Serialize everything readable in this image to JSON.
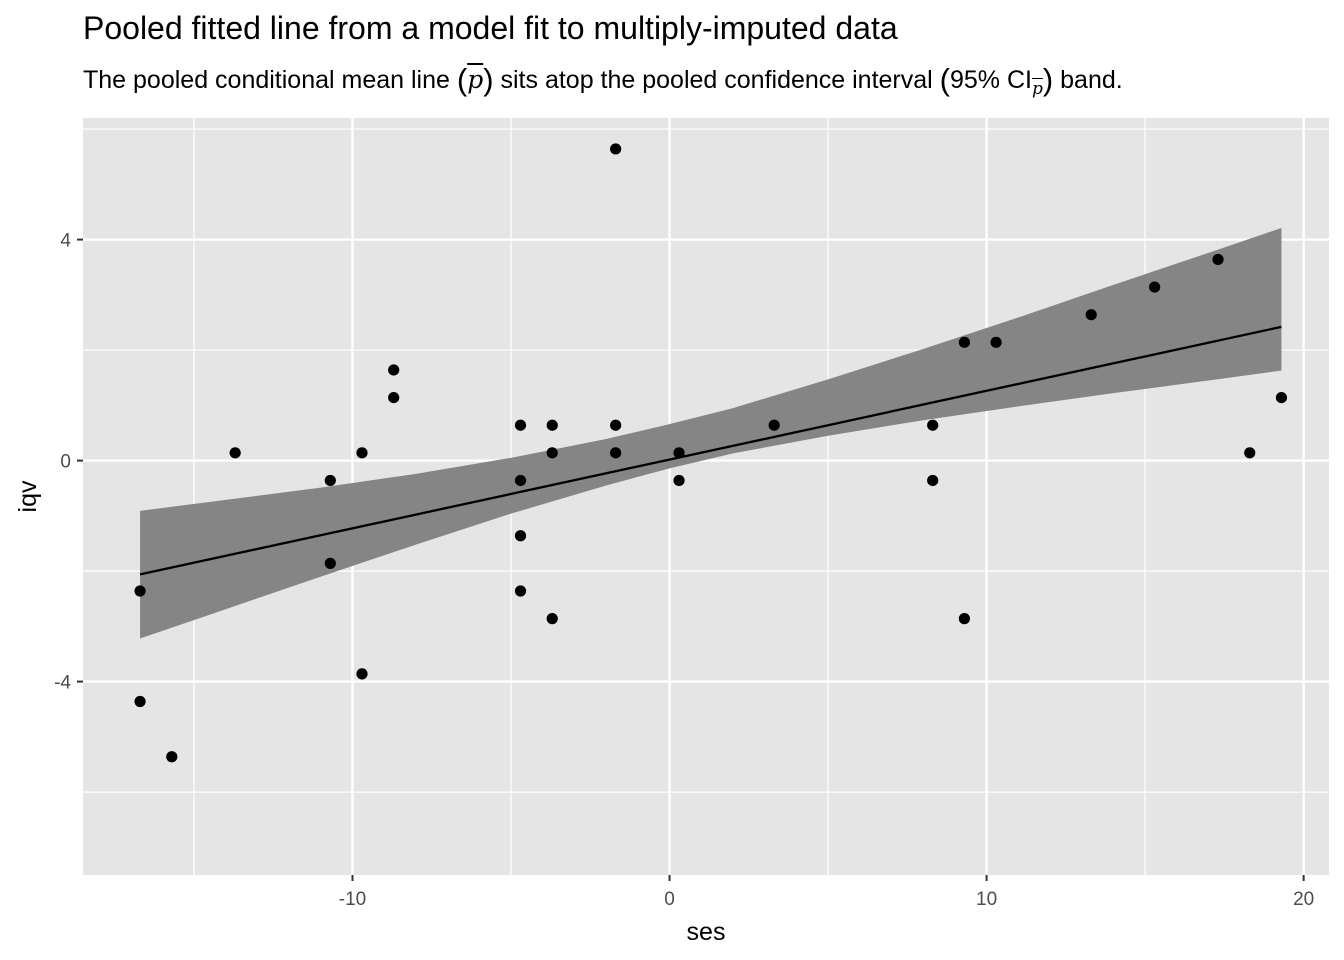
{
  "chart_data": {
    "type": "scatter",
    "title": "Pooled fitted line from a model fit to multiply-imputed data",
    "subtitle": {
      "before": "The pooled conditional mean line ",
      "symbol": "p",
      "middle": " sits atop the pooled confidence interval ",
      "ci_label": "95% CI",
      "after": " band."
    },
    "xlabel": "ses",
    "ylabel": "iqv",
    "xlim": [
      -18.5,
      20.8
    ],
    "ylim": [
      -7.5,
      6.2
    ],
    "x_ticks": [
      -10,
      0,
      10,
      20
    ],
    "x_tick_labels": [
      "-10",
      "0",
      "10",
      "20"
    ],
    "y_ticks": [
      -4,
      0,
      4
    ],
    "y_tick_labels": [
      "-4",
      "0",
      "4"
    ],
    "x_minor": [
      -15,
      -5,
      5,
      15
    ],
    "y_minor": [
      -6,
      -2,
      2,
      6
    ],
    "grid": true,
    "panel_background": "#e5e5e5",
    "points": [
      {
        "x": -16.7,
        "y": -2.36
      },
      {
        "x": -16.7,
        "y": -4.36
      },
      {
        "x": -15.7,
        "y": -5.36
      },
      {
        "x": -13.7,
        "y": 0.14
      },
      {
        "x": -10.7,
        "y": -0.36
      },
      {
        "x": -10.7,
        "y": -1.86
      },
      {
        "x": -9.7,
        "y": 0.14
      },
      {
        "x": -9.7,
        "y": -3.86
      },
      {
        "x": -8.7,
        "y": 1.64
      },
      {
        "x": -8.7,
        "y": 1.14
      },
      {
        "x": -4.7,
        "y": 0.64
      },
      {
        "x": -4.7,
        "y": -0.36
      },
      {
        "x": -4.7,
        "y": -1.36
      },
      {
        "x": -4.7,
        "y": -2.36
      },
      {
        "x": -3.7,
        "y": 0.64
      },
      {
        "x": -3.7,
        "y": 0.14
      },
      {
        "x": -3.7,
        "y": -2.86
      },
      {
        "x": -1.7,
        "y": 5.64
      },
      {
        "x": -1.7,
        "y": 0.64
      },
      {
        "x": -1.7,
        "y": 0.14
      },
      {
        "x": 0.3,
        "y": 0.14
      },
      {
        "x": 0.3,
        "y": -0.36
      },
      {
        "x": 3.3,
        "y": 0.64
      },
      {
        "x": 8.3,
        "y": 0.64
      },
      {
        "x": 8.3,
        "y": -0.36
      },
      {
        "x": 9.3,
        "y": 2.14
      },
      {
        "x": 9.3,
        "y": -2.86
      },
      {
        "x": 10.3,
        "y": 2.14
      },
      {
        "x": 13.3,
        "y": 2.64
      },
      {
        "x": 15.3,
        "y": 3.14
      },
      {
        "x": 17.3,
        "y": 3.64
      },
      {
        "x": 18.3,
        "y": 0.14
      },
      {
        "x": 19.3,
        "y": 1.14
      }
    ],
    "fit_line": {
      "x": [
        -16.7,
        19.3
      ],
      "y": [
        -2.06,
        2.42
      ]
    },
    "ci_band": [
      {
        "x": -16.7,
        "lower": -3.22,
        "upper": -0.91
      },
      {
        "x": -14,
        "lower": -2.69,
        "upper": -0.71
      },
      {
        "x": -11,
        "lower": -2.1,
        "upper": -0.49
      },
      {
        "x": -8,
        "lower": -1.52,
        "upper": -0.24
      },
      {
        "x": -5,
        "lower": -0.96,
        "upper": 0.05
      },
      {
        "x": -2,
        "lower": -0.45,
        "upper": 0.39
      },
      {
        "x": 0,
        "lower": -0.14,
        "upper": 0.66
      },
      {
        "x": 2,
        "lower": 0.13,
        "upper": 0.95
      },
      {
        "x": 5,
        "lower": 0.45,
        "upper": 1.47
      },
      {
        "x": 8,
        "lower": 0.73,
        "upper": 2.02
      },
      {
        "x": 11,
        "lower": 0.98,
        "upper": 2.59
      },
      {
        "x": 14,
        "lower": 1.22,
        "upper": 3.18
      },
      {
        "x": 17,
        "lower": 1.45,
        "upper": 3.76
      },
      {
        "x": 19.3,
        "lower": 1.63,
        "upper": 4.21
      }
    ],
    "colors": {
      "points": "#000000",
      "line": "#000000",
      "band": "#858585",
      "grid": "#ffffff",
      "tick": "#4d4d4d"
    }
  }
}
